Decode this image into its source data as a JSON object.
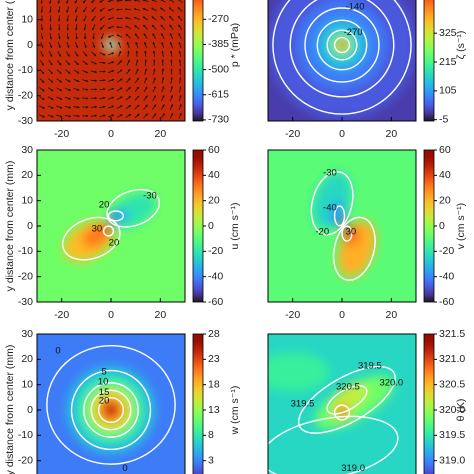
{
  "chart_data": [
    {
      "type": "heatmap",
      "ylabel": "y distance from center (mm)",
      "colorbar_label": "p * (mPa)",
      "xlim": [
        -30,
        30
      ],
      "ylim": [
        -30,
        30
      ],
      "xticks": [
        -20,
        0,
        20
      ],
      "yticks": [
        -30,
        -20,
        -10,
        0,
        10
      ],
      "clim": [
        -735,
        -40
      ],
      "cticks": [
        -730,
        -615,
        -500,
        -385,
        -270
      ],
      "quiver": true,
      "contour_labels": []
    },
    {
      "type": "heatmap",
      "colorbar_label": "ζ (s⁻¹)",
      "xlim": [
        -30,
        30
      ],
      "ylim": [
        -30,
        30
      ],
      "xticks": [
        -20,
        0,
        20
      ],
      "yticks": [],
      "clim": [
        -10,
        570
      ],
      "cticks": [
        -5,
        105,
        215,
        325
      ],
      "quiver": false,
      "contour_labels": [
        "-140",
        "-270"
      ]
    },
    {
      "type": "heatmap",
      "ylabel": "y distance from center (mm)",
      "colorbar_label": "u (cm s⁻¹)",
      "xlim": [
        -30,
        30
      ],
      "ylim": [
        -30,
        30
      ],
      "xticks": [
        -20,
        0,
        20
      ],
      "yticks": [
        -30,
        -20,
        -10,
        0,
        10,
        20,
        30
      ],
      "clim": [
        -60,
        60
      ],
      "cticks": [
        -60,
        -40,
        -20,
        0,
        20,
        40,
        60
      ],
      "quiver": false,
      "contour_labels": [
        "-30",
        "20",
        "30",
        "20"
      ]
    },
    {
      "type": "heatmap",
      "colorbar_label": "v (cm s⁻¹)",
      "xlim": [
        -30,
        30
      ],
      "ylim": [
        -30,
        30
      ],
      "xticks": [
        -20,
        0,
        20
      ],
      "yticks": [],
      "clim": [
        -60,
        60
      ],
      "cticks": [
        -60,
        -40,
        -20,
        0,
        20,
        40,
        60
      ],
      "quiver": false,
      "contour_labels": [
        "-30",
        "-40",
        "-20",
        "30"
      ]
    },
    {
      "type": "heatmap",
      "ylabel": "y distance from center (mm)",
      "colorbar_label": "w (cm s⁻¹)",
      "xlim": [
        -30,
        30
      ],
      "ylim": [
        -30,
        30
      ],
      "xticks": [],
      "yticks": [
        -20,
        -10,
        0,
        10,
        20,
        30
      ],
      "clim": [
        -2,
        28
      ],
      "cticks": [
        3,
        8,
        13,
        18,
        23,
        28
      ],
      "quiver": false,
      "contour_labels": [
        "0",
        "5",
        "10",
        "15",
        "20",
        "0"
      ]
    },
    {
      "type": "heatmap",
      "colorbar_label": "θ (K)",
      "xlim": [
        -30,
        30
      ],
      "ylim": [
        -30,
        30
      ],
      "xticks": [],
      "yticks": [],
      "clim": [
        318.5,
        321.5
      ],
      "cticks": [
        {
          "value": 319,
          "label": "319.0"
        },
        319.5,
        {
          "value": 320,
          "label": "320.0"
        },
        320.5,
        {
          "value": 321,
          "label": "321.0"
        },
        321.5
      ],
      "quiver": false,
      "contour_labels": [
        "319.5",
        "320.5",
        "320.0",
        "319.5",
        "319.0"
      ]
    }
  ]
}
